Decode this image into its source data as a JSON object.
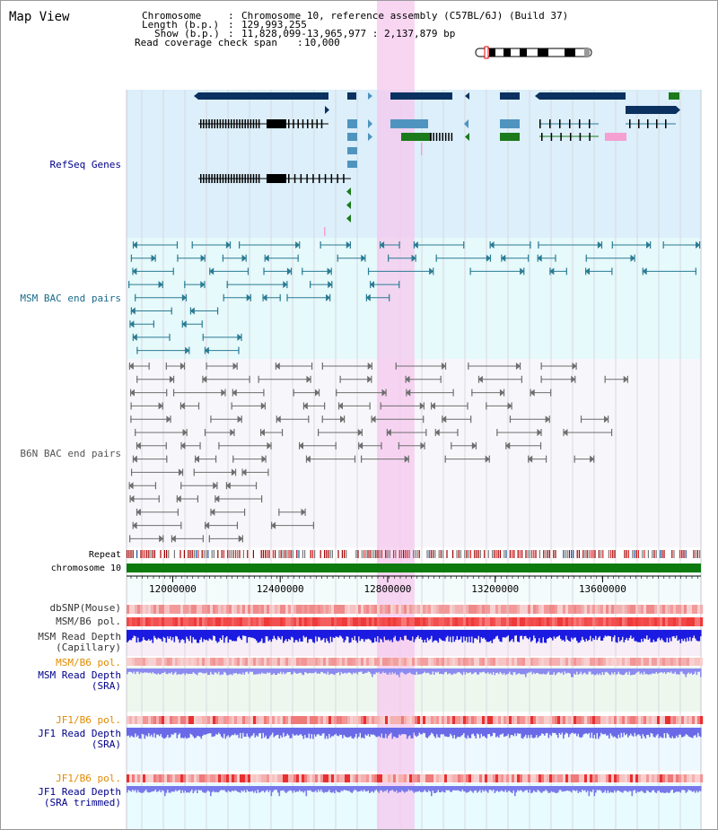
{
  "page": {
    "title": "Map View",
    "info": {
      "chromosome_key": "Chromosome",
      "chromosome_val": "Chromosome 10, reference assembly (C57BL/6J) (Build 37)",
      "length_key": "Length (b.p.)",
      "length_val": "129,993,255",
      "show_key": "Show (b.p.)",
      "show_val": "11,828,099-13,965,977 : 2,137,879 bp",
      "span_key": "Read coverage check span",
      "span_val": "10,000"
    }
  },
  "tracks": {
    "refseq": "RefSeq Genes",
    "msm_bac": "MSM BAC end pairs",
    "b6n_bac": "B6N BAC end pairs",
    "repeat": "Repeat",
    "chromosome": "chromosome 10",
    "dbsnp": "dbSNP(Mouse)",
    "msm_b6_pol": "MSM/B6 pol.",
    "msm_depth_cap_1": "MSM Read Depth",
    "msm_depth_cap_2": "(Capillary)",
    "msm_b6_pol_2": "MSM/B6 pol.",
    "msm_depth_sra_1": "MSM Read Depth",
    "msm_depth_sra_2": "(SRA)",
    "jf1_b6_pol": "JF1/B6 pol.",
    "jf1_depth_sra_1": "JF1 Read Depth",
    "jf1_depth_sra_2": "(SRA)",
    "jf1_b6_pol_2": "JF1/B6 pol.",
    "jf1_depth_trim_1": "JF1 Read Depth",
    "jf1_depth_trim_2": "(SRA trimmed)"
  },
  "axis": {
    "range_bp": [
      11828099,
      13965977
    ],
    "ticks": [
      {
        "bp": 12000000,
        "label": "12000000"
      },
      {
        "bp": 12400000,
        "label": "12400000"
      },
      {
        "bp": 12800000,
        "label": "12800000"
      },
      {
        "bp": 13200000,
        "label": "13200000"
      },
      {
        "bp": 13600000,
        "label": "13600000"
      }
    ],
    "highlight_bp": [
      12760000,
      12900000
    ]
  },
  "colors": {
    "refseq_bg": "#dceffa",
    "msm_bg": "#e6f9fb",
    "b6n_bg": "#f7f7fb",
    "highlight": "#f5c8ee",
    "gene_dark": "#0b3160",
    "gene_mid": "#4f94bf",
    "gene_green": "#1b7a1b",
    "gene_pink": "#f5a0d0",
    "msm_line": "#2a7b93",
    "b6n_line": "#6e6e6e",
    "chrom_green": "#0c7a0c",
    "title_blue": "#00008b",
    "msm_label": "#1a6b8a",
    "b6n_label": "#555555",
    "orange_label": "#e28a00"
  }
}
